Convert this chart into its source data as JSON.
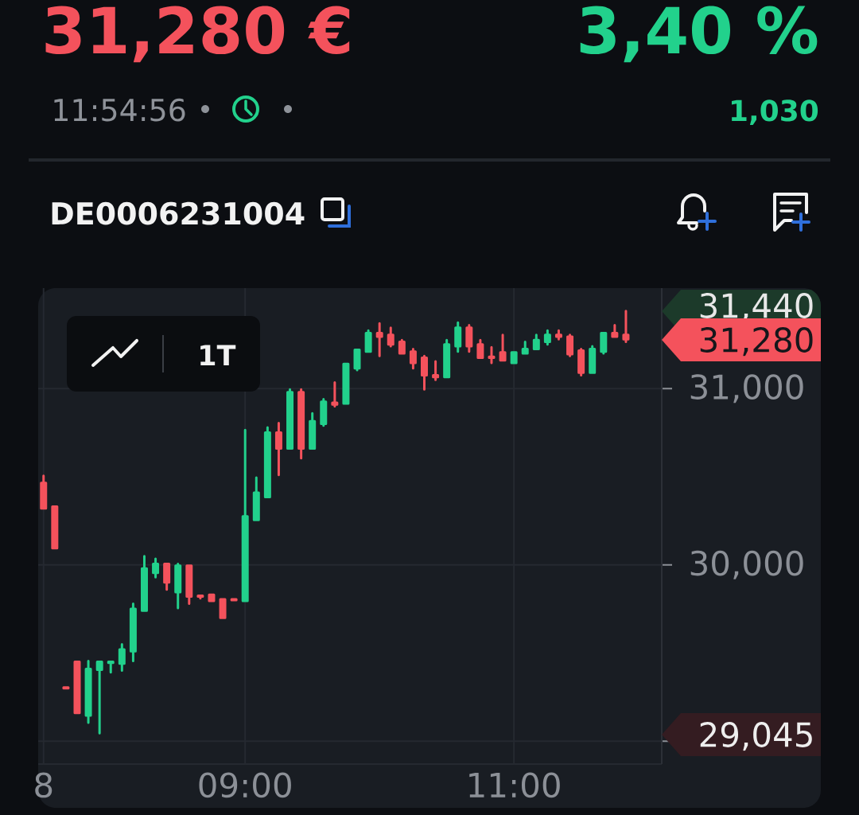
{
  "chart_data": {
    "type": "candlestick",
    "title": "DE0006231004",
    "annotations": [
      "31,280 €",
      "3,40 %",
      "11:54:56",
      "1,030",
      "1T",
      "31,440",
      "31,280",
      "29,045"
    ],
    "x": [
      7.5,
      7.5833,
      7.6667,
      7.75,
      7.8333,
      7.9167,
      8.0,
      8.0833,
      8.1667,
      8.25,
      8.3333,
      8.4167,
      8.5,
      8.5833,
      8.6667,
      8.75,
      8.8333,
      8.9167,
      9.0,
      9.0833,
      9.1667,
      9.25,
      9.3333,
      9.4167,
      9.5,
      9.5833,
      9.6667,
      9.75,
      9.8333,
      9.9167,
      10.0,
      10.0833,
      10.1667,
      10.25,
      10.3333,
      10.4167,
      10.5,
      10.5833,
      10.6667,
      10.75,
      10.8333,
      10.9167,
      11.0,
      11.0833,
      11.1667,
      11.25,
      11.3333,
      11.4167,
      11.5,
      11.5833,
      11.6667,
      11.75,
      11.8333
    ],
    "ohlc": [
      [
        30465,
        30505,
        30320,
        30320
      ],
      [
        30330,
        30330,
        30095,
        30095
      ],
      [
        29305,
        29305,
        29300,
        29300
      ],
      [
        29450,
        29450,
        29160,
        29160
      ],
      [
        29145,
        29455,
        29105,
        29410
      ],
      [
        29405,
        29450,
        29045,
        29450
      ],
      [
        29445,
        29450,
        29390,
        29450
      ],
      [
        29440,
        29550,
        29400,
        29520
      ],
      [
        29510,
        29780,
        29455,
        29750
      ],
      [
        29740,
        30050,
        29740,
        29980
      ],
      [
        29955,
        30035,
        29930,
        30005
      ],
      [
        30005,
        30005,
        29860,
        29900
      ],
      [
        29845,
        30005,
        29755,
        29995
      ],
      [
        29995,
        29995,
        29780,
        29820
      ],
      [
        29825,
        29825,
        29810,
        29820
      ],
      [
        29830,
        29830,
        29795,
        29795
      ],
      [
        29805,
        29805,
        29700,
        29700
      ],
      [
        29805,
        29805,
        29800,
        29800
      ],
      [
        29795,
        30765,
        29795,
        30275
      ],
      [
        30255,
        30495,
        30255,
        30410
      ],
      [
        30385,
        30780,
        30385,
        30750
      ],
      [
        30750,
        30805,
        30510,
        30660
      ],
      [
        30660,
        30995,
        30660,
        30980
      ],
      [
        30980,
        30995,
        30605,
        30660
      ],
      [
        30660,
        30860,
        30660,
        30815
      ],
      [
        30800,
        30940,
        30790,
        30925
      ],
      [
        30920,
        31035,
        30900,
        30910
      ],
      [
        30915,
        31140,
        30915,
        31140
      ],
      [
        31115,
        31220,
        31105,
        31220
      ],
      [
        31210,
        31330,
        31210,
        31315
      ],
      [
        31315,
        31370,
        31185,
        31295
      ],
      [
        31305,
        31345,
        31240,
        31250
      ],
      [
        31265,
        31275,
        31200,
        31200
      ],
      [
        31210,
        31225,
        31115,
        31145
      ],
      [
        31175,
        31185,
        30995,
        31075
      ],
      [
        31075,
        31155,
        31050,
        31065
      ],
      [
        31065,
        31275,
        31065,
        31250
      ],
      [
        31240,
        31375,
        31210,
        31345
      ],
      [
        31345,
        31360,
        31210,
        31240
      ],
      [
        31250,
        31275,
        31175,
        31175
      ],
      [
        31180,
        31235,
        31145,
        31175
      ],
      [
        31205,
        31305,
        31160,
        31160
      ],
      [
        31145,
        31205,
        31145,
        31205
      ],
      [
        31200,
        31265,
        31200,
        31225
      ],
      [
        31225,
        31305,
        31225,
        31275
      ],
      [
        31265,
        31330,
        31250,
        31305
      ],
      [
        31305,
        31330,
        31280,
        31295
      ],
      [
        31295,
        31305,
        31185,
        31195
      ],
      [
        31215,
        31225,
        31075,
        31090
      ],
      [
        31090,
        31240,
        31090,
        31225
      ],
      [
        31210,
        31315,
        31200,
        31315
      ],
      [
        31315,
        31360,
        31295,
        31295
      ],
      [
        31305,
        31440,
        31265,
        31280
      ]
    ],
    "colors": [
      "#f4525c",
      "#f4525c",
      "#f4525c",
      "#f4525c",
      "#22d18c",
      "#22d18c",
      "#22d18c",
      "#22d18c",
      "#22d18c",
      "#22d18c",
      "#22d18c",
      "#f4525c",
      "#22d18c",
      "#f4525c",
      "#f4525c",
      "#f4525c",
      "#f4525c",
      "#f4525c",
      "#22d18c",
      "#22d18c",
      "#22d18c",
      "#f4525c",
      "#22d18c",
      "#f4525c",
      "#22d18c",
      "#22d18c",
      "#f4525c",
      "#22d18c",
      "#22d18c",
      "#22d18c",
      "#f4525c",
      "#f4525c",
      "#f4525c",
      "#f4525c",
      "#f4525c",
      "#f4525c",
      "#22d18c",
      "#22d18c",
      "#f4525c",
      "#f4525c",
      "#f4525c",
      "#f4525c",
      "#22d18c",
      "#22d18c",
      "#22d18c",
      "#22d18c",
      "#f4525c",
      "#f4525c",
      "#f4525c",
      "#22d18c",
      "#22d18c",
      "#f4525c",
      "#f4525c"
    ],
    "xlim": [
      7.46,
      12.1
    ],
    "ylim": [
      28870,
      31570
    ],
    "xticks": [
      {
        "value": 7.5,
        "label": "8"
      },
      {
        "value": 9,
        "label": "09:00"
      },
      {
        "value": 11,
        "label": "11:00"
      }
    ],
    "yticks": [
      {
        "value": 29000,
        "label": null
      },
      {
        "value": 30000,
        "label": "30,000"
      },
      {
        "value": 31000,
        "label": "31,000"
      }
    ],
    "grid": true
  }
}
